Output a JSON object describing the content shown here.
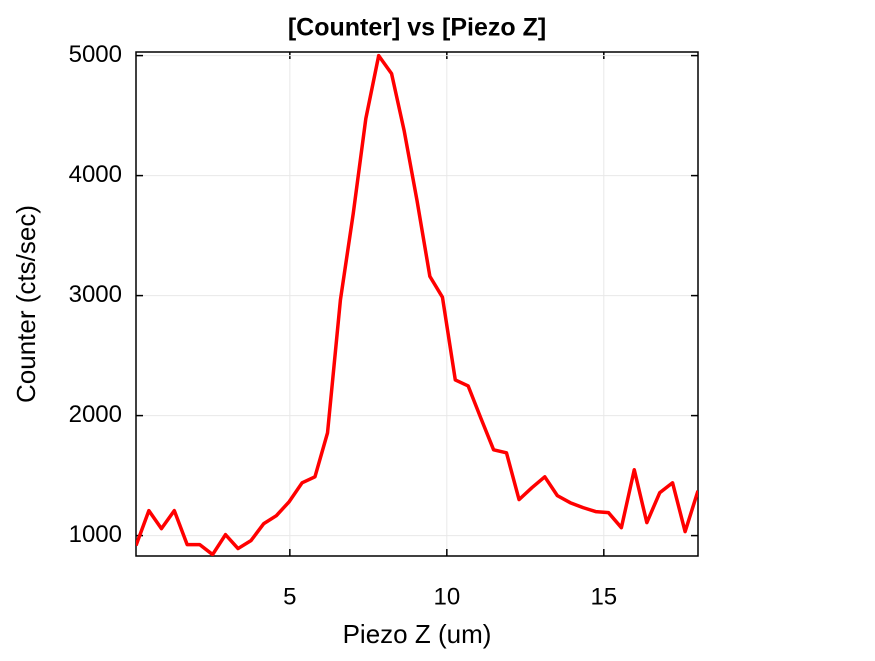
{
  "chart_data": {
    "type": "line",
    "title": "[Counter] vs [Piezo Z]",
    "xlabel": "Piezo Z (um)",
    "ylabel": "Counter (cts/sec)",
    "x": [
      0.1,
      0.51,
      0.91,
      1.32,
      1.73,
      2.13,
      2.54,
      2.95,
      3.35,
      3.76,
      4.17,
      4.57,
      4.98,
      5.39,
      5.8,
      6.2,
      6.61,
      7.02,
      7.42,
      7.83,
      8.24,
      8.64,
      9.05,
      9.46,
      9.86,
      10.27,
      10.68,
      11.08,
      11.49,
      11.9,
      12.3,
      12.71,
      13.12,
      13.52,
      13.93,
      14.34,
      14.74,
      15.15,
      15.56,
      15.97,
      16.37,
      16.78,
      17.19,
      17.59,
      18.0
    ],
    "series": [
      {
        "name": "Counter",
        "color": "#ff0000",
        "values": [
          917,
          1208,
          1058,
          1208,
          925,
          925,
          842,
          1008,
          892,
          958,
          1100,
          1166,
          1283,
          1440,
          1490,
          1856,
          2962,
          3685,
          4475,
          5000,
          4850,
          4375,
          3793,
          3160,
          2987,
          2297,
          2247,
          1981,
          1715,
          1690,
          1300,
          1399,
          1490,
          1333,
          1274,
          1233,
          1200,
          1191,
          1066,
          1549,
          1108,
          1357,
          1440,
          1033,
          1374
        ]
      }
    ],
    "xlim": [
      0.1,
      18.0
    ],
    "ylim": [
      830,
      5030
    ],
    "xticks": [
      5,
      10,
      15
    ],
    "yticks": [
      1000,
      2000,
      3000,
      4000,
      5000
    ],
    "grid": true
  }
}
